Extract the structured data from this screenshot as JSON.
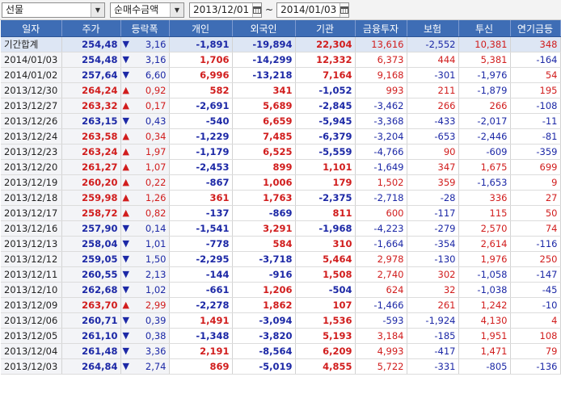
{
  "toolbar": {
    "market": "선물",
    "measure": "순매수금액",
    "start_date": "2013/12/01",
    "end_date": "2014/01/03",
    "range_sep": "~"
  },
  "colors": {
    "header_bg": "#3e6db5",
    "up": "#d11d1d",
    "down": "#1c28a6",
    "total_row": "#dde6f4"
  },
  "columns": [
    "일자",
    "주가",
    "등락폭",
    "개인",
    "외국인",
    "기관",
    "금융투자",
    "보험",
    "투신",
    "연기금등"
  ],
  "rows": [
    {
      "date": "기간합계",
      "price": "254,48",
      "pdir": "dn",
      "arrow": "▼",
      "chg": "3,16",
      "ind": "-1,891",
      "frn": "-19,894",
      "inst": "22,304",
      "fin": "13,616",
      "ins": "-2,552",
      "tru": "10,381",
      "pen": "348",
      "total": true
    },
    {
      "date": "2014/01/03",
      "price": "254,48",
      "pdir": "dn",
      "arrow": "▼",
      "chg": "3,16",
      "ind": "1,706",
      "frn": "-14,299",
      "inst": "12,332",
      "fin": "6,373",
      "ins": "444",
      "tru": "5,381",
      "pen": "-164"
    },
    {
      "date": "2014/01/02",
      "price": "257,64",
      "pdir": "dn",
      "arrow": "▼",
      "chg": "6,60",
      "ind": "6,996",
      "frn": "-13,218",
      "inst": "7,164",
      "fin": "9,168",
      "ins": "-301",
      "tru": "-1,976",
      "pen": "54"
    },
    {
      "date": "2013/12/30",
      "price": "264,24",
      "pdir": "up",
      "arrow": "▲",
      "chg": "0,92",
      "ind": "582",
      "frn": "341",
      "inst": "-1,052",
      "fin": "993",
      "ins": "211",
      "tru": "-1,879",
      "pen": "195"
    },
    {
      "date": "2013/12/27",
      "price": "263,32",
      "pdir": "up",
      "arrow": "▲",
      "chg": "0,17",
      "ind": "-2,691",
      "frn": "5,689",
      "inst": "-2,845",
      "fin": "-3,462",
      "ins": "266",
      "tru": "266",
      "pen": "-108"
    },
    {
      "date": "2013/12/26",
      "price": "263,15",
      "pdir": "dn",
      "arrow": "▼",
      "chg": "0,43",
      "ind": "-540",
      "frn": "6,659",
      "inst": "-5,945",
      "fin": "-3,368",
      "ins": "-433",
      "tru": "-2,017",
      "pen": "-11"
    },
    {
      "date": "2013/12/24",
      "price": "263,58",
      "pdir": "up",
      "arrow": "▲",
      "chg": "0,34",
      "ind": "-1,229",
      "frn": "7,485",
      "inst": "-6,379",
      "fin": "-3,204",
      "ins": "-653",
      "tru": "-2,446",
      "pen": "-81"
    },
    {
      "date": "2013/12/23",
      "price": "263,24",
      "pdir": "up",
      "arrow": "▲",
      "chg": "1,97",
      "ind": "-1,179",
      "frn": "6,525",
      "inst": "-5,559",
      "fin": "-4,766",
      "ins": "90",
      "tru": "-609",
      "pen": "-359"
    },
    {
      "date": "2013/12/20",
      "price": "261,27",
      "pdir": "up",
      "arrow": "▲",
      "chg": "1,07",
      "ind": "-2,453",
      "frn": "899",
      "inst": "1,101",
      "fin": "-1,649",
      "ins": "347",
      "tru": "1,675",
      "pen": "699"
    },
    {
      "date": "2013/12/19",
      "price": "260,20",
      "pdir": "up",
      "arrow": "▲",
      "chg": "0,22",
      "ind": "-867",
      "frn": "1,006",
      "inst": "179",
      "fin": "1,502",
      "ins": "359",
      "tru": "-1,653",
      "pen": "9"
    },
    {
      "date": "2013/12/18",
      "price": "259,98",
      "pdir": "up",
      "arrow": "▲",
      "chg": "1,26",
      "ind": "361",
      "frn": "1,763",
      "inst": "-2,375",
      "fin": "-2,718",
      "ins": "-28",
      "tru": "336",
      "pen": "27"
    },
    {
      "date": "2013/12/17",
      "price": "258,72",
      "pdir": "up",
      "arrow": "▲",
      "chg": "0,82",
      "ind": "-137",
      "frn": "-869",
      "inst": "811",
      "fin": "600",
      "ins": "-117",
      "tru": "115",
      "pen": "50"
    },
    {
      "date": "2013/12/16",
      "price": "257,90",
      "pdir": "dn",
      "arrow": "▼",
      "chg": "0,14",
      "ind": "-1,541",
      "frn": "3,291",
      "inst": "-1,968",
      "fin": "-4,223",
      "ins": "-279",
      "tru": "2,570",
      "pen": "74"
    },
    {
      "date": "2013/12/13",
      "price": "258,04",
      "pdir": "dn",
      "arrow": "▼",
      "chg": "1,01",
      "ind": "-778",
      "frn": "584",
      "inst": "310",
      "fin": "-1,664",
      "ins": "-354",
      "tru": "2,614",
      "pen": "-116"
    },
    {
      "date": "2013/12/12",
      "price": "259,05",
      "pdir": "dn",
      "arrow": "▼",
      "chg": "1,50",
      "ind": "-2,295",
      "frn": "-3,718",
      "inst": "5,464",
      "fin": "2,978",
      "ins": "-130",
      "tru": "1,976",
      "pen": "250"
    },
    {
      "date": "2013/12/11",
      "price": "260,55",
      "pdir": "dn",
      "arrow": "▼",
      "chg": "2,13",
      "ind": "-144",
      "frn": "-916",
      "inst": "1,508",
      "fin": "2,740",
      "ins": "302",
      "tru": "-1,058",
      "pen": "-147"
    },
    {
      "date": "2013/12/10",
      "price": "262,68",
      "pdir": "dn",
      "arrow": "▼",
      "chg": "1,02",
      "ind": "-661",
      "frn": "1,206",
      "inst": "-504",
      "fin": "624",
      "ins": "32",
      "tru": "-1,038",
      "pen": "-45"
    },
    {
      "date": "2013/12/09",
      "price": "263,70",
      "pdir": "up",
      "arrow": "▲",
      "chg": "2,99",
      "ind": "-2,278",
      "frn": "1,862",
      "inst": "107",
      "fin": "-1,466",
      "ins": "261",
      "tru": "1,242",
      "pen": "-10"
    },
    {
      "date": "2013/12/06",
      "price": "260,71",
      "pdir": "dn",
      "arrow": "▼",
      "chg": "0,39",
      "ind": "1,491",
      "frn": "-3,094",
      "inst": "1,536",
      "fin": "-593",
      "ins": "-1,924",
      "tru": "4,130",
      "pen": "4"
    },
    {
      "date": "2013/12/05",
      "price": "261,10",
      "pdir": "dn",
      "arrow": "▼",
      "chg": "0,38",
      "ind": "-1,348",
      "frn": "-3,820",
      "inst": "5,193",
      "fin": "3,184",
      "ins": "-185",
      "tru": "1,951",
      "pen": "108"
    },
    {
      "date": "2013/12/04",
      "price": "261,48",
      "pdir": "dn",
      "arrow": "▼",
      "chg": "3,36",
      "ind": "2,191",
      "frn": "-8,564",
      "inst": "6,209",
      "fin": "4,993",
      "ins": "-417",
      "tru": "1,471",
      "pen": "79"
    },
    {
      "date": "2013/12/03",
      "price": "264,84",
      "pdir": "dn",
      "arrow": "▼",
      "chg": "2,74",
      "ind": "869",
      "frn": "-5,019",
      "inst": "4,855",
      "fin": "5,722",
      "ins": "-331",
      "tru": "-805",
      "pen": "-136"
    }
  ]
}
